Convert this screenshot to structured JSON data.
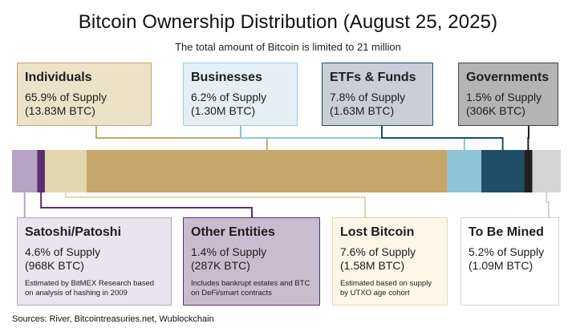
{
  "chart_data": {
    "type": "stacked-bar",
    "title": "Bitcoin Ownership Distribution (August 25, 2025)",
    "subtitle": "The total amount of Bitcoin is limited to 21 million",
    "total_btc": "21M",
    "segments": [
      {
        "key": "satoshi",
        "label": "Satoshi/Patoshi",
        "percent": 4.6,
        "percent_text": "4.6% of Supply",
        "btc_text": "(968K BTC)",
        "note": "Estimated by BitMEX Research based on analysis of hashing in 2009",
        "color": "#b7a3c4",
        "position": "bottom"
      },
      {
        "key": "other",
        "label": "Other Entities",
        "percent": 1.4,
        "percent_text": "1.4% of Supply",
        "btc_text": "(287K BTC)",
        "note": "Includes bankrupt estates and BTC on DeFi/smart contracts",
        "color": "#5b2f70",
        "position": "bottom"
      },
      {
        "key": "lost",
        "label": "Lost Bitcoin",
        "percent": 7.6,
        "percent_text": "7.6% of Supply",
        "btc_text": "(1.58M BTC)",
        "note": "Estimated based on supply by UTXO age cohort",
        "color": "#e3d7b2",
        "position": "bottom"
      },
      {
        "key": "individuals",
        "label": "Individuals",
        "percent": 65.9,
        "percent_text": "65.9% of Supply",
        "btc_text": "(13.83M BTC)",
        "note": "",
        "color": "#c6a66a",
        "position": "top"
      },
      {
        "key": "businesses",
        "label": "Businesses",
        "percent": 6.2,
        "percent_text": "6.2% of Supply",
        "btc_text": "(1.30M BTC)",
        "note": "",
        "color": "#8ec3d8",
        "position": "top"
      },
      {
        "key": "etfs",
        "label": "ETFs & Funds",
        "percent": 7.8,
        "percent_text": "7.8% of Supply",
        "btc_text": "(1.63M BTC)",
        "note": "",
        "color": "#1f4e68",
        "position": "top"
      },
      {
        "key": "governments",
        "label": "Governments",
        "percent": 1.5,
        "percent_text": "1.5% of Supply",
        "btc_text": "(306K BTC)",
        "note": "",
        "color": "#1f1f1f",
        "position": "top"
      },
      {
        "key": "mined",
        "label": "To Be Mined",
        "percent": 5.2,
        "percent_text": "5.2% of Supply",
        "btc_text": "(1.09M BTC)",
        "note": "",
        "color": "#d4d4d4",
        "position": "bottom"
      }
    ]
  },
  "sources": "Sources: River, Bitcointreasuries.net, Wublockchain"
}
